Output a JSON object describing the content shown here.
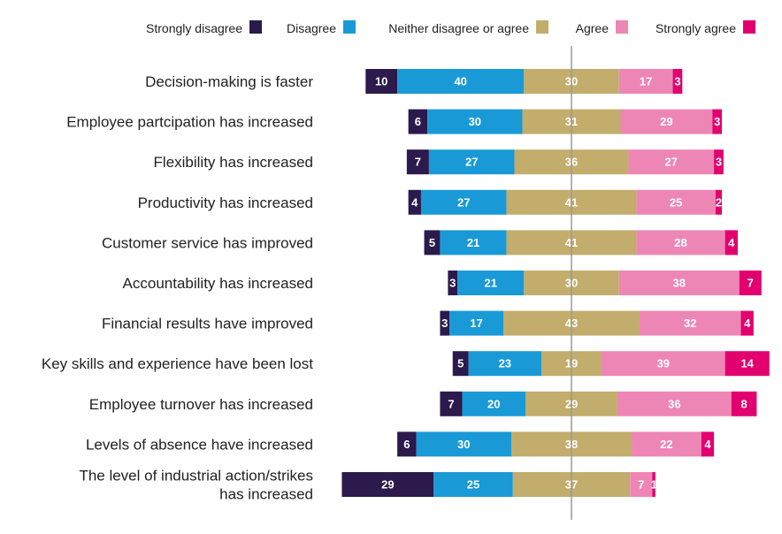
{
  "chart_data": {
    "type": "bar",
    "orientation": "horizontal",
    "stacking": "diverging",
    "title": "",
    "xlabel": "",
    "ylabel": "",
    "legend_position": "top",
    "grid": false,
    "categories": [
      [
        "Decision-making is faster"
      ],
      [
        "Employee partcipation has increased"
      ],
      [
        "Flexibility has increased"
      ],
      [
        "Productivity has increased"
      ],
      [
        "Customer service has improved"
      ],
      [
        "Accountability has increased"
      ],
      [
        "Financial results have improved"
      ],
      [
        "Key skills and experience have been lost"
      ],
      [
        "Employee turnover has increased"
      ],
      [
        "Levels of absence have increased"
      ],
      [
        "The level of industrial action/strikes",
        "has increased"
      ]
    ],
    "series": [
      {
        "name": "Strongly disagree",
        "color": "#2b1a4b",
        "values": [
          10,
          6,
          7,
          4,
          5,
          3,
          3,
          5,
          7,
          6,
          29
        ]
      },
      {
        "name": "Disagree",
        "color": "#199ad6",
        "values": [
          40,
          30,
          27,
          27,
          21,
          21,
          17,
          23,
          20,
          30,
          25
        ]
      },
      {
        "name": "Neither disagree or agree",
        "color": "#c2ad6c",
        "values": [
          30,
          31,
          36,
          41,
          41,
          30,
          43,
          19,
          29,
          38,
          37
        ]
      },
      {
        "name": "Agree",
        "color": "#ee86b5",
        "values": [
          17,
          29,
          27,
          25,
          28,
          38,
          32,
          39,
          36,
          22,
          7
        ]
      },
      {
        "name": "Strongly agree",
        "color": "#e2006f",
        "values": [
          3,
          3,
          3,
          2,
          4,
          7,
          4,
          14,
          8,
          4,
          1
        ]
      }
    ]
  }
}
